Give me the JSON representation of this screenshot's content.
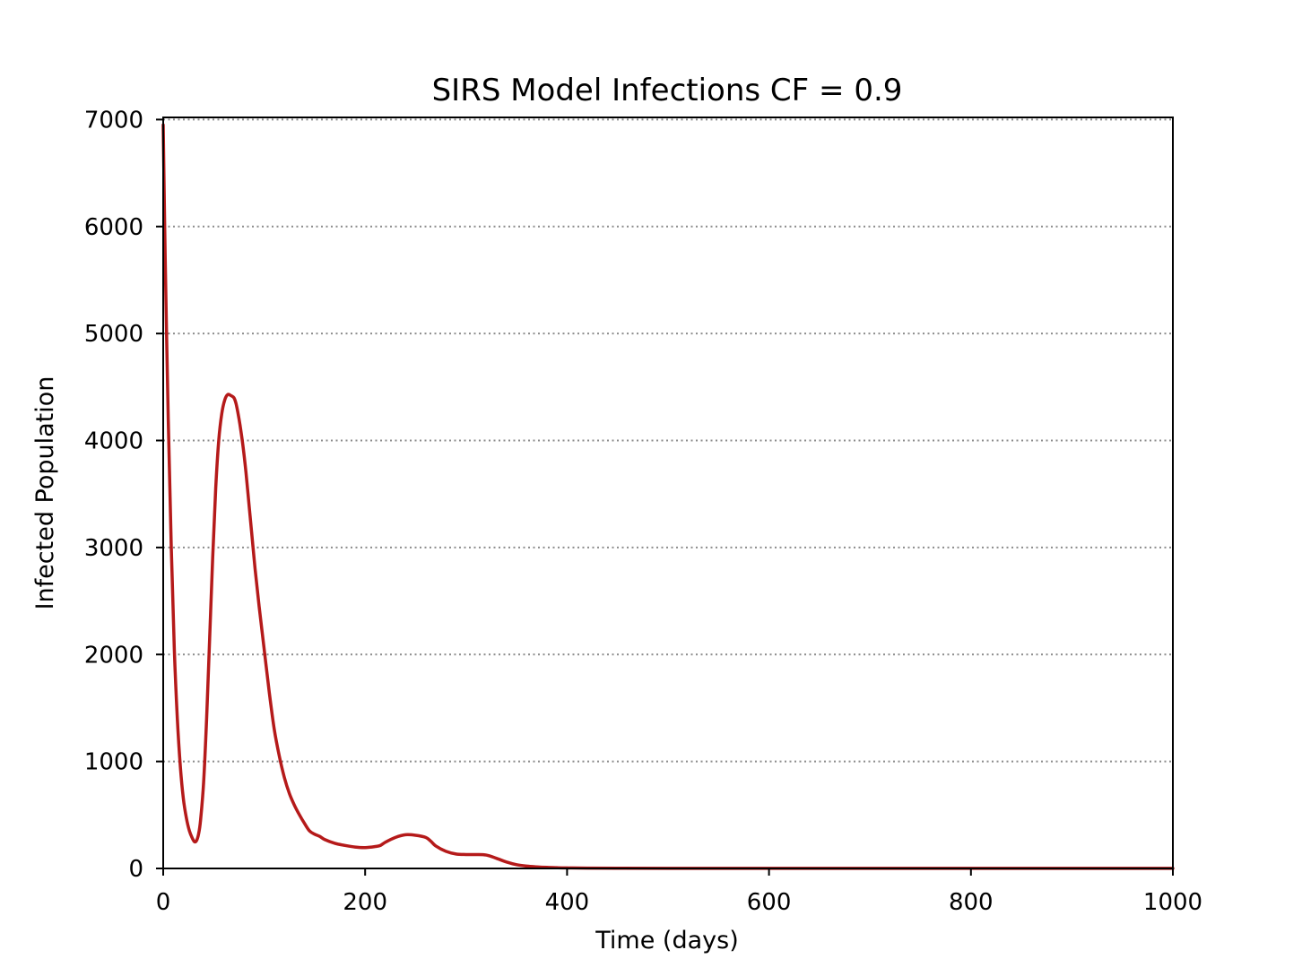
{
  "chart_data": {
    "type": "line",
    "title": "SIRS Model Infections CF = 0.9",
    "xlabel": "Time (days)",
    "ylabel": "Infected Population",
    "xlim": [
      0,
      1000
    ],
    "ylim": [
      0,
      7020
    ],
    "grid": {
      "y": true,
      "x": false,
      "style": "dotted"
    },
    "x_ticks": [
      {
        "value": 0,
        "label": "0"
      },
      {
        "value": 200,
        "label": "200"
      },
      {
        "value": 400,
        "label": "400"
      },
      {
        "value": 600,
        "label": "600"
      },
      {
        "value": 800,
        "label": "800"
      },
      {
        "value": 1000,
        "label": "1000"
      }
    ],
    "y_ticks": [
      {
        "value": 0,
        "label": "0"
      },
      {
        "value": 1000,
        "label": "1000"
      },
      {
        "value": 2000,
        "label": "2000"
      },
      {
        "value": 3000,
        "label": "3000"
      },
      {
        "value": 4000,
        "label": "4000"
      },
      {
        "value": 5000,
        "label": "5000"
      },
      {
        "value": 6000,
        "label": "6000"
      },
      {
        "value": 7000,
        "label": "7000"
      }
    ],
    "series": [
      {
        "color": "#b51a1a",
        "x": [
          0,
          2,
          5,
          8,
          11,
          14,
          17,
          20,
          23,
          26,
          29,
          31,
          33,
          35,
          37,
          40,
          43,
          46,
          49,
          52,
          55,
          58,
          61,
          64,
          67,
          70,
          72,
          74,
          76,
          79,
          82,
          85,
          88,
          91,
          95,
          100,
          105,
          110,
          115,
          120,
          125,
          130,
          135,
          140,
          145,
          150,
          155,
          160,
          170,
          180,
          190,
          200,
          210,
          215,
          220,
          230,
          240,
          250,
          260,
          265,
          270,
          280,
          290,
          300,
          310,
          320,
          330,
          340,
          350,
          360,
          370,
          380,
          390,
          400,
          420,
          450,
          500,
          600,
          700,
          800,
          900,
          1000
        ],
        "y": [
          6950,
          5700,
          4200,
          3000,
          2050,
          1400,
          950,
          650,
          470,
          350,
          280,
          250,
          260,
          320,
          450,
          800,
          1400,
          2150,
          2900,
          3550,
          4000,
          4250,
          4380,
          4430,
          4420,
          4400,
          4350,
          4260,
          4150,
          3950,
          3700,
          3400,
          3100,
          2800,
          2450,
          2050,
          1650,
          1300,
          1050,
          850,
          700,
          590,
          500,
          420,
          350,
          320,
          300,
          270,
          235,
          215,
          200,
          195,
          205,
          215,
          245,
          290,
          315,
          310,
          290,
          255,
          210,
          160,
          135,
          130,
          130,
          125,
          95,
          60,
          35,
          22,
          15,
          10,
          7,
          5,
          3,
          2,
          1,
          1,
          1,
          1,
          1,
          1
        ]
      }
    ]
  }
}
